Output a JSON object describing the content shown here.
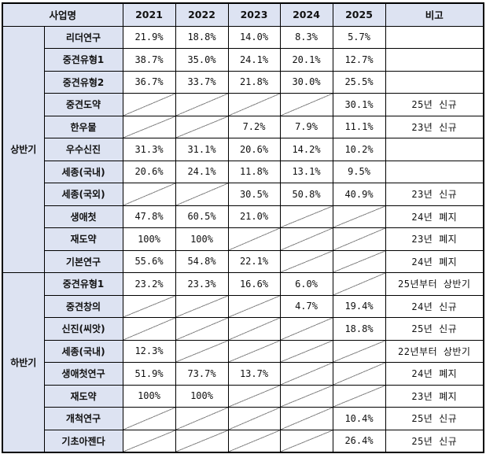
{
  "header": {
    "project_name": "사업명",
    "years": [
      "2021",
      "2022",
      "2023",
      "2024",
      "2025"
    ],
    "remarks": "비고"
  },
  "sections": [
    {
      "label": "상반기",
      "rows": [
        {
          "name": "리더연구",
          "values": [
            "21.9%",
            "18.8%",
            "14.0%",
            "8.3%",
            "5.7%"
          ],
          "remark": ""
        },
        {
          "name": "중견유형1",
          "values": [
            "38.7%",
            "35.0%",
            "24.1%",
            "20.1%",
            "12.7%"
          ],
          "remark": ""
        },
        {
          "name": "중견유형2",
          "values": [
            "36.7%",
            "33.7%",
            "21.8%",
            "30.0%",
            "25.5%"
          ],
          "remark": ""
        },
        {
          "name": "중견도약",
          "values": [
            null,
            null,
            null,
            null,
            "30.1%"
          ],
          "remark": "25년 신규"
        },
        {
          "name": "한우물",
          "values": [
            null,
            null,
            "7.2%",
            "7.9%",
            "11.1%"
          ],
          "remark": "23년 신규"
        },
        {
          "name": "우수신진",
          "values": [
            "31.3%",
            "31.1%",
            "20.6%",
            "14.2%",
            "10.2%"
          ],
          "remark": ""
        },
        {
          "name": "세종(국내)",
          "values": [
            "20.6%",
            "24.1%",
            "11.8%",
            "13.1%",
            "9.5%"
          ],
          "remark": ""
        },
        {
          "name": "세종(국외)",
          "values": [
            null,
            null,
            "30.5%",
            "50.8%",
            "40.9%"
          ],
          "remark": "23년 신규"
        },
        {
          "name": "생애첫",
          "values": [
            "47.8%",
            "60.5%",
            "21.0%",
            null,
            null
          ],
          "remark": "24년 폐지"
        },
        {
          "name": "재도약",
          "values": [
            "100%",
            "100%",
            null,
            null,
            null
          ],
          "remark": "23년 폐지"
        },
        {
          "name": "기본연구",
          "values": [
            "55.6%",
            "54.8%",
            "22.1%",
            null,
            null
          ],
          "remark": "24년 폐지"
        }
      ]
    },
    {
      "label": "하반기",
      "rows": [
        {
          "name": "중견유형1",
          "values": [
            "23.2%",
            "23.3%",
            "16.6%",
            "6.0%",
            null
          ],
          "remark": "25년부터 상반기"
        },
        {
          "name": "중견창의",
          "values": [
            null,
            null,
            null,
            "4.7%",
            "19.4%"
          ],
          "remark": "24년 신규"
        },
        {
          "name": "신진(씨앗)",
          "values": [
            null,
            null,
            null,
            null,
            "18.8%"
          ],
          "remark": "25년 신규"
        },
        {
          "name": "세종(국내)",
          "values": [
            "12.3%",
            null,
            null,
            null,
            null
          ],
          "remark": "22년부터 상반기"
        },
        {
          "name": "생애첫연구",
          "values": [
            "51.9%",
            "73.7%",
            "13.7%",
            null,
            null
          ],
          "remark": "24년 폐지"
        },
        {
          "name": "재도약",
          "values": [
            "100%",
            "100%",
            null,
            null,
            null
          ],
          "remark": "23년 폐지"
        },
        {
          "name": "개척연구",
          "values": [
            null,
            null,
            null,
            null,
            "10.4%"
          ],
          "remark": "25년 신규"
        },
        {
          "name": "기초아젠다",
          "values": [
            null,
            null,
            null,
            null,
            "26.4%"
          ],
          "remark": "25년 신규"
        }
      ]
    }
  ],
  "colors": {
    "header_bg": "#dde3f2",
    "border": "#000000",
    "cell_bg": "#ffffff"
  }
}
